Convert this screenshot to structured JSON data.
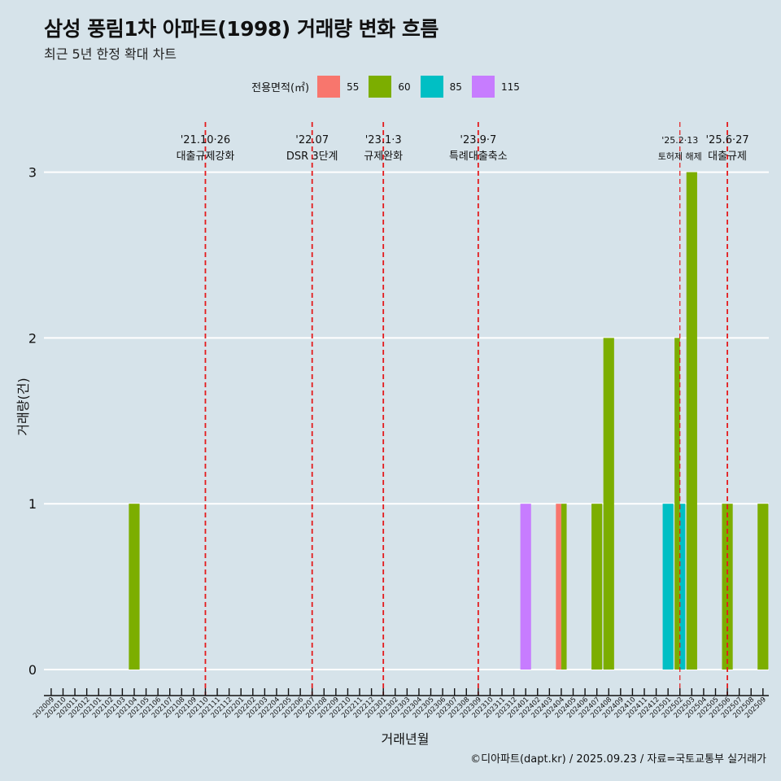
{
  "chart_data": {
    "type": "bar",
    "title": "삼성 풍림1차 아파트(1998) 거래량 변화 흐름",
    "subtitle": "최근 5년 한정 확대 차트",
    "xlabel": "거래년월",
    "ylabel": "거래량(건)",
    "ylim": [
      0,
      3.3
    ],
    "yticks": [
      0,
      1,
      2,
      3
    ],
    "legend_title": "전용면적(㎡)",
    "legend_position": "top",
    "caption": "©디아파트(dapt.kr) / 2025.09.23 / 자료=국토교통부 실거래가",
    "categories": [
      "202009",
      "202010",
      "202011",
      "202012",
      "202101",
      "202102",
      "202103",
      "202104",
      "202105",
      "202106",
      "202107",
      "202108",
      "202109",
      "202110",
      "202111",
      "202112",
      "202201",
      "202202",
      "202203",
      "202204",
      "202205",
      "202206",
      "202207",
      "202208",
      "202209",
      "202210",
      "202211",
      "202212",
      "202301",
      "202302",
      "202303",
      "202304",
      "202305",
      "202306",
      "202307",
      "202308",
      "202309",
      "202310",
      "202311",
      "202312",
      "202401",
      "202402",
      "202403",
      "202404",
      "202405",
      "202406",
      "202407",
      "202408",
      "202409",
      "202410",
      "202411",
      "202412",
      "202501",
      "202502",
      "202503",
      "202504",
      "202505",
      "202506",
      "202507",
      "202508",
      "202509"
    ],
    "series": [
      {
        "name": "55",
        "color": "#f8766d",
        "values": [
          0,
          0,
          0,
          0,
          0,
          0,
          0,
          0,
          0,
          0,
          0,
          0,
          0,
          0,
          0,
          0,
          0,
          0,
          0,
          0,
          0,
          0,
          0,
          0,
          0,
          0,
          0,
          0,
          0,
          0,
          0,
          0,
          0,
          0,
          0,
          0,
          0,
          0,
          0,
          0,
          0,
          0,
          0,
          1,
          0,
          0,
          0,
          0,
          0,
          0,
          0,
          0,
          0,
          0,
          0,
          0,
          0,
          0,
          0,
          0,
          0
        ]
      },
      {
        "name": "60",
        "color": "#7cae00",
        "values": [
          0,
          0,
          0,
          0,
          0,
          0,
          0,
          1,
          0,
          0,
          0,
          0,
          0,
          0,
          0,
          0,
          0,
          0,
          0,
          0,
          0,
          0,
          0,
          0,
          0,
          0,
          0,
          0,
          0,
          0,
          0,
          0,
          0,
          0,
          0,
          0,
          0,
          0,
          0,
          0,
          0,
          0,
          0,
          1,
          0,
          0,
          1,
          2,
          0,
          0,
          0,
          0,
          0,
          2,
          3,
          0,
          0,
          1,
          0,
          0,
          1
        ]
      },
      {
        "name": "85",
        "color": "#00bfc4",
        "values": [
          0,
          0,
          0,
          0,
          0,
          0,
          0,
          0,
          0,
          0,
          0,
          0,
          0,
          0,
          0,
          0,
          0,
          0,
          0,
          0,
          0,
          0,
          0,
          0,
          0,
          0,
          0,
          0,
          0,
          0,
          0,
          0,
          0,
          0,
          0,
          0,
          0,
          0,
          0,
          0,
          0,
          0,
          0,
          0,
          0,
          0,
          0,
          0,
          0,
          0,
          0,
          0,
          1,
          1,
          0,
          0,
          0,
          0,
          0,
          0,
          0
        ]
      },
      {
        "name": "115",
        "color": "#c77cff",
        "values": [
          0,
          0,
          0,
          0,
          0,
          0,
          0,
          0,
          0,
          0,
          0,
          0,
          0,
          0,
          0,
          0,
          0,
          0,
          0,
          0,
          0,
          0,
          0,
          0,
          0,
          0,
          0,
          0,
          0,
          0,
          0,
          0,
          0,
          0,
          0,
          0,
          0,
          0,
          0,
          0,
          1,
          0,
          0,
          0,
          0,
          0,
          0,
          0,
          0,
          0,
          0,
          0,
          0,
          0,
          0,
          0,
          0,
          0,
          0,
          0,
          0
        ]
      }
    ],
    "annotations": [
      {
        "x": "202110",
        "date": "'21.10·26",
        "label": "대출규제강화"
      },
      {
        "x": "202207",
        "date": "'22.07",
        "label": "DSR 3단계"
      },
      {
        "x": "202301",
        "date": "'23.1·3",
        "label": "규제완화"
      },
      {
        "x": "202309",
        "date": "'23.9·7",
        "label": "특례대출축소"
      },
      {
        "x": "202502",
        "date": "'25.2·13",
        "label": "토허제 해제",
        "small": true
      },
      {
        "x": "202506",
        "date": "'25.6·27",
        "label": "대출규제"
      }
    ],
    "annotation_color": "#e41a1c"
  }
}
